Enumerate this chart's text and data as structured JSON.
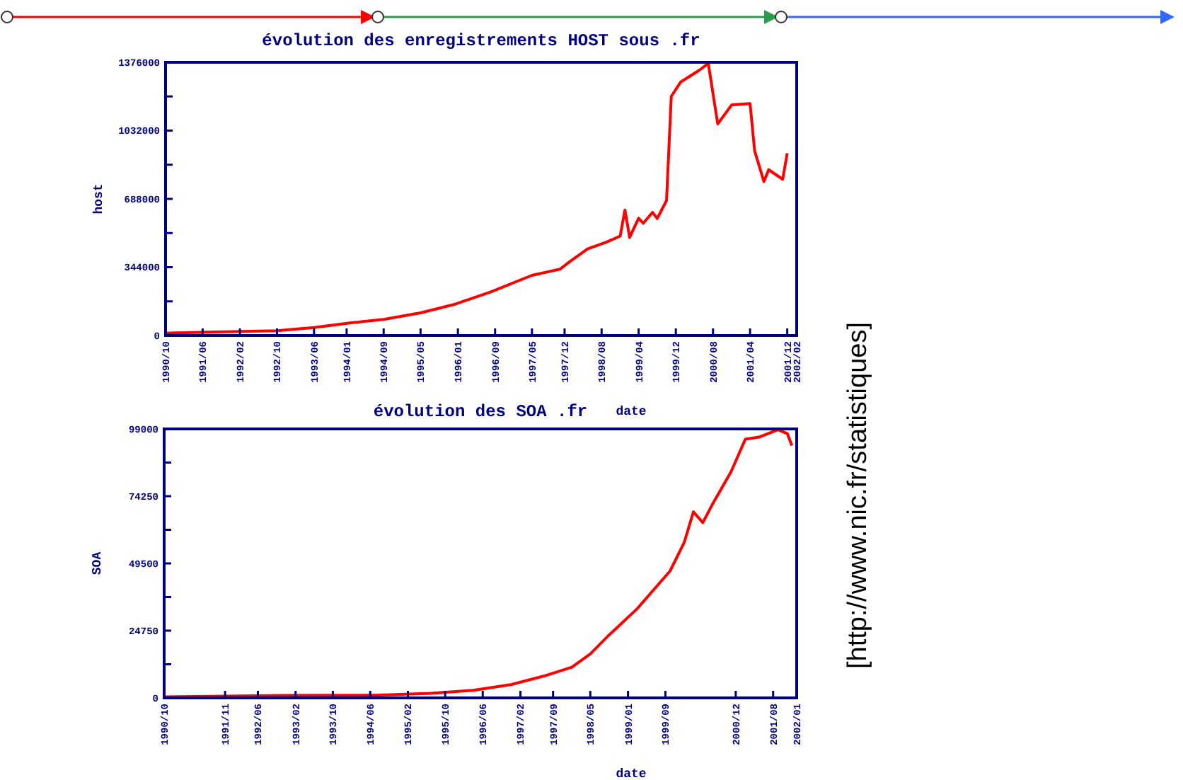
{
  "chart_data": [
    {
      "type": "line",
      "title": "évolution des enregistrements HOST sous .fr",
      "xlabel": "date",
      "ylabel": "host",
      "x": [
        "1990-10",
        "1991-07",
        "1992-10",
        "1993-06",
        "1994-02",
        "1994-09",
        "1995-05",
        "1995-12",
        "1996-08",
        "1997-05",
        "1997-11",
        "1998-01",
        "1998-05",
        "1998-09",
        "1998-12",
        "1999-01",
        "1999-02",
        "1999-04",
        "1999-05",
        "1999-07",
        "1999-08",
        "1999-10",
        "1999-11",
        "2000-01",
        "2000-05",
        "2000-07",
        "2000-09",
        "2000-12",
        "2001-04",
        "2001-05",
        "2001-07",
        "2001-08",
        "2001-11",
        "2001-12"
      ],
      "series": [
        {
          "color": "#ff0000",
          "values": [
            12000,
            17000,
            24000,
            40000,
            64000,
            81000,
            114000,
            155000,
            219000,
            303000,
            334000,
            370000,
            436000,
            470000,
            501000,
            632000,
            494000,
            591000,
            565000,
            620000,
            589000,
            680000,
            1204000,
            1276000,
            1335000,
            1370000,
            1066000,
            1161000,
            1168000,
            930000,
            775000,
            835000,
            787000,
            918000
          ]
        }
      ],
      "xlim": [
        "1990-10",
        "2002-02"
      ],
      "xticks": [
        {
          "value": "1990-10",
          "label": "1990/10"
        },
        {
          "value": "1991-06",
          "label": "1991/06"
        },
        {
          "value": "1992-02",
          "label": "1992/02"
        },
        {
          "value": "1992-10",
          "label": "1992/10"
        },
        {
          "value": "1993-06",
          "label": "1993/06"
        },
        {
          "value": "1994-01",
          "label": "1994/01"
        },
        {
          "value": "1994-09",
          "label": "1994/09"
        },
        {
          "value": "1995-05",
          "label": "1995/05"
        },
        {
          "value": "1996-01",
          "label": "1996/01"
        },
        {
          "value": "1996-09",
          "label": "1996/09"
        },
        {
          "value": "1997-05",
          "label": "1997/05"
        },
        {
          "value": "1997-12",
          "label": "1997/12"
        },
        {
          "value": "1998-08",
          "label": "1998/08"
        },
        {
          "value": "1999-04",
          "label": "1999/04"
        },
        {
          "value": "1999-12",
          "label": "1999/12"
        },
        {
          "value": "2000-08",
          "label": "2000/08"
        },
        {
          "value": "2001-04",
          "label": "2001/04"
        },
        {
          "value": "2001-12",
          "label": "2001/12"
        },
        {
          "value": "2002-02",
          "label": "2002/02"
        }
      ],
      "ylim": [
        0,
        1376000
      ],
      "yticks": [
        0,
        {
          "value": 172000,
          "label": null
        },
        344000,
        {
          "value": 516000,
          "label": null
        },
        688000,
        {
          "value": 860000,
          "label": null
        },
        1032000,
        {
          "value": 1204000,
          "label": null
        },
        1376000
      ],
      "grid": false,
      "line_style": "solid",
      "marker": "none"
    },
    {
      "type": "line",
      "title": "évolution des SOA .fr",
      "xlabel": "date",
      "ylabel": "SOA",
      "x": [
        "1990-10",
        "1992-12",
        "1994-07",
        "1995-07",
        "1996-04",
        "1996-12",
        "1997-07",
        "1998-01",
        "1998-05",
        "1998-09",
        "1999-03",
        "1999-10",
        "2000-01",
        "2000-03",
        "2000-05",
        "2000-07",
        "2000-11",
        "2001-02",
        "2001-05",
        "2001-09",
        "2001-11",
        "2001-12"
      ],
      "series": [
        {
          "color": "#ff0000",
          "values": [
            400,
            900,
            1000,
            1700,
            2800,
            4900,
            8000,
            11300,
            16200,
            23200,
            32800,
            46700,
            57200,
            68500,
            64500,
            71100,
            83300,
            95200,
            96000,
            98700,
            97300,
            92900
          ]
        }
      ],
      "xlim": [
        "1990-10",
        "2002-01"
      ],
      "xticks": [
        {
          "value": "1990-10",
          "label": "1990/10"
        },
        {
          "value": "1991-11",
          "label": "1991/11"
        },
        {
          "value": "1992-06",
          "label": "1992/06"
        },
        {
          "value": "1993-02",
          "label": "1993/02"
        },
        {
          "value": "1993-10",
          "label": "1993/10"
        },
        {
          "value": "1994-06",
          "label": "1994/06"
        },
        {
          "value": "1995-02",
          "label": "1995/02"
        },
        {
          "value": "1995-10",
          "label": "1995/10"
        },
        {
          "value": "1996-06",
          "label": "1996/06"
        },
        {
          "value": "1997-02",
          "label": "1997/02"
        },
        {
          "value": "1997-09",
          "label": "1997/09"
        },
        {
          "value": "1998-05",
          "label": "1998/05"
        },
        {
          "value": "1999-01",
          "label": "1999/01"
        },
        {
          "value": "1999-09",
          "label": "1999/09"
        },
        {
          "value": "2000-12",
          "label": "2000/12"
        },
        {
          "value": "2001-08",
          "label": "2001/08"
        },
        {
          "value": "2002-01",
          "label": "2002/01"
        }
      ],
      "ylim": [
        0,
        99000
      ],
      "yticks": [
        0,
        {
          "value": 12375,
          "label": null
        },
        24750,
        {
          "value": 37125,
          "label": null
        },
        49500,
        {
          "value": 61875,
          "label": null
        },
        74250,
        {
          "value": 86625,
          "label": null
        },
        99000
      ],
      "grid": false,
      "line_style": "solid",
      "marker": "none",
      "annotations": [
        "[http://www.nic.fr/statistiques]"
      ]
    }
  ]
}
